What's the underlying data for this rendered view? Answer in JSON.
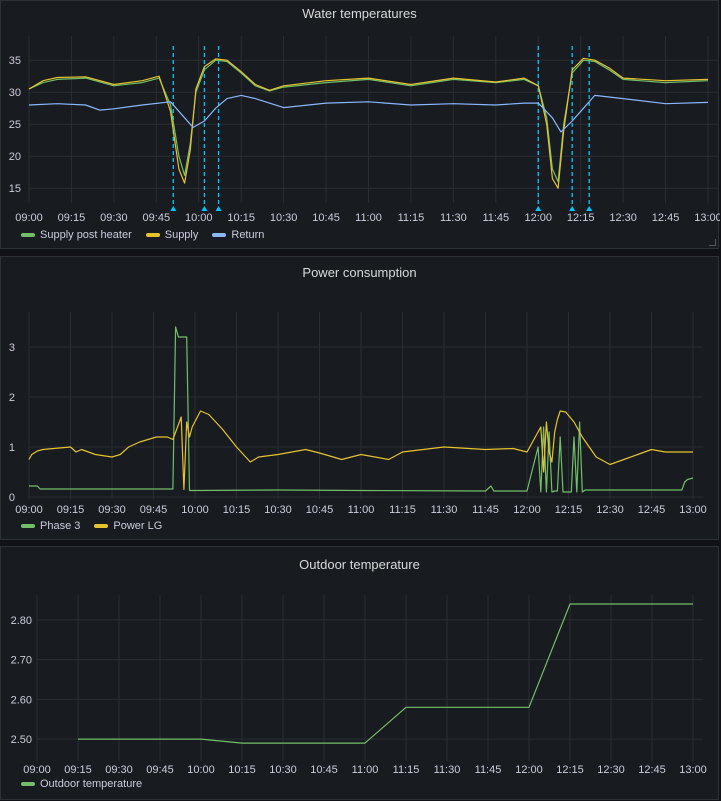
{
  "chart_data": [
    {
      "type": "line",
      "title": "Water temperatures",
      "xlabel": "",
      "ylabel": "",
      "x_ticks": [
        "09:00",
        "09:15",
        "09:30",
        "09:45",
        "10:00",
        "10:15",
        "10:30",
        "10:45",
        "11:00",
        "11:15",
        "11:30",
        "11:45",
        "12:00",
        "12:15",
        "12:30",
        "12:45",
        "13:00"
      ],
      "xlim": [
        "09:00",
        "13:00"
      ],
      "ylim": [
        13,
        38
      ],
      "y_ticks": [
        15,
        20,
        25,
        30,
        35
      ],
      "annotations_x": [
        "09:51",
        "10:02",
        "10:07",
        "12:00",
        "12:12",
        "12:18"
      ],
      "annotation_color": "#00c8ff",
      "grid": true,
      "legend": "bottom-left",
      "series": [
        {
          "name": "Supply post heater",
          "color": "#73bf69",
          "x": [
            "09:00",
            "09:05",
            "09:10",
            "09:20",
            "09:30",
            "09:40",
            "09:46",
            "09:50",
            "09:53",
            "09:55",
            "09:57",
            "09:59",
            "10:02",
            "10:06",
            "10:10",
            "10:15",
            "10:20",
            "10:25",
            "10:30",
            "10:45",
            "11:00",
            "11:15",
            "11:30",
            "11:45",
            "11:55",
            "12:00",
            "12:03",
            "12:05",
            "12:07",
            "12:09",
            "12:12",
            "12:16",
            "12:20",
            "12:25",
            "12:30",
            "12:45",
            "13:00"
          ],
          "y": [
            30.5,
            31.5,
            32,
            32.2,
            31,
            31.5,
            32.2,
            28,
            20,
            17,
            22,
            30,
            33.5,
            35,
            34.8,
            33,
            31,
            30.2,
            30.8,
            31.5,
            32,
            31,
            32,
            31.5,
            32,
            31,
            26,
            18,
            16,
            25,
            33,
            35,
            34.8,
            33.5,
            32,
            31.5,
            31.8
          ]
        },
        {
          "name": "Supply",
          "color": "#e6c32e",
          "x": [
            "09:00",
            "09:05",
            "09:10",
            "09:20",
            "09:30",
            "09:40",
            "09:46",
            "09:50",
            "09:53",
            "09:55",
            "09:57",
            "09:59",
            "10:02",
            "10:06",
            "10:10",
            "10:15",
            "10:20",
            "10:25",
            "10:30",
            "10:45",
            "11:00",
            "11:15",
            "11:30",
            "11:45",
            "11:55",
            "12:00",
            "12:03",
            "12:05",
            "12:07",
            "12:09",
            "12:12",
            "12:16",
            "12:20",
            "12:25",
            "12:30",
            "12:45",
            "13:00"
          ],
          "y": [
            30.5,
            31.8,
            32.3,
            32.4,
            31.2,
            31.8,
            32.5,
            27,
            18,
            15.8,
            21,
            30.5,
            34,
            35.2,
            35,
            33.2,
            31.2,
            30.3,
            31,
            31.8,
            32.2,
            31.2,
            32.2,
            31.6,
            32.2,
            31,
            25,
            16.5,
            15,
            24,
            33.5,
            35.3,
            35,
            33.8,
            32.2,
            31.8,
            32
          ]
        },
        {
          "name": "Return",
          "color": "#8ab8ff",
          "x": [
            "09:00",
            "09:10",
            "09:20",
            "09:25",
            "09:30",
            "09:40",
            "09:50",
            "09:55",
            "09:58",
            "10:02",
            "10:06",
            "10:10",
            "10:15",
            "10:20",
            "10:30",
            "10:45",
            "11:00",
            "11:15",
            "11:30",
            "11:45",
            "11:55",
            "12:00",
            "12:05",
            "12:08",
            "12:12",
            "12:16",
            "12:20",
            "12:30",
            "12:45",
            "13:00"
          ],
          "y": [
            28,
            28.2,
            28,
            27.2,
            27.4,
            28,
            28.5,
            26,
            24.5,
            25.5,
            27.5,
            29,
            29.5,
            29,
            27.6,
            28.3,
            28.5,
            28,
            28.2,
            28,
            28.3,
            28.3,
            26,
            23.8,
            25.5,
            27.5,
            29.5,
            29,
            28.2,
            28.4
          ]
        }
      ]
    },
    {
      "type": "line",
      "title": "Power consumption",
      "xlabel": "",
      "ylabel": "",
      "x_ticks": [
        "09:00",
        "09:15",
        "09:30",
        "09:45",
        "10:00",
        "10:15",
        "10:30",
        "10:45",
        "11:00",
        "11:15",
        "11:30",
        "11:45",
        "12:00",
        "12:15",
        "12:30",
        "12:45",
        "13:00"
      ],
      "xlim": [
        "09:00",
        "13:00"
      ],
      "ylim": [
        0,
        3.6
      ],
      "y_ticks": [
        0,
        1,
        2,
        3
      ],
      "grid": true,
      "legend": "bottom-left",
      "series": [
        {
          "name": "Phase 3",
          "color": "#73bf69",
          "x": [
            "09:00",
            "09:03",
            "09:04",
            "09:52",
            "09:53",
            "09:54",
            "09:57",
            "09:58",
            "10:00",
            "10:30",
            "11:00",
            "11:45",
            "11:47",
            "11:48",
            "12:00",
            "12:04",
            "12:05",
            "12:06",
            "12:07",
            "12:08",
            "12:09",
            "12:10",
            "12:11",
            "12:12",
            "12:13",
            "12:16",
            "12:17",
            "12:18",
            "12:19",
            "12:20",
            "12:21",
            "12:56",
            "12:57",
            "12:58",
            "13:00"
          ],
          "y": [
            0.22,
            0.22,
            0.16,
            0.16,
            3.4,
            3.2,
            3.2,
            0.13,
            0.13,
            0.14,
            0.13,
            0.12,
            0.22,
            0.12,
            0.12,
            1.0,
            0.1,
            1.4,
            0.1,
            1.3,
            0.1,
            0.12,
            0.12,
            1.2,
            0.1,
            0.1,
            1.2,
            0.1,
            1.5,
            0.1,
            0.14,
            0.14,
            0.3,
            0.35,
            0.38
          ]
        },
        {
          "name": "Power LG",
          "color": "#e6c32e",
          "x": [
            "09:00",
            "09:01",
            "09:03",
            "09:05",
            "09:15",
            "09:17",
            "09:19",
            "09:24",
            "09:30",
            "09:33",
            "09:36",
            "09:40",
            "09:43",
            "09:46",
            "09:50",
            "09:52",
            "09:55",
            "09:56",
            "09:57",
            "09:58",
            "09:59",
            "10:02",
            "10:05",
            "10:10",
            "10:15",
            "10:20",
            "10:23",
            "10:30",
            "10:40",
            "10:45",
            "10:50",
            "10:53",
            "11:00",
            "11:10",
            "11:15",
            "11:30",
            "11:45",
            "11:55",
            "12:00",
            "12:05",
            "12:06",
            "12:07",
            "12:08",
            "12:09",
            "12:10",
            "12:11",
            "12:12",
            "12:14",
            "12:17",
            "12:20",
            "12:25",
            "12:30",
            "12:35",
            "12:40",
            "12:45",
            "12:50",
            "13:00"
          ],
          "y": [
            0.75,
            0.85,
            0.92,
            0.95,
            1.0,
            0.9,
            0.95,
            0.85,
            0.8,
            0.85,
            1.0,
            1.1,
            1.15,
            1.2,
            1.2,
            1.15,
            1.6,
            0.15,
            1.5,
            1.2,
            1.4,
            1.72,
            1.65,
            1.35,
            1.0,
            0.7,
            0.8,
            0.85,
            0.95,
            0.88,
            0.8,
            0.75,
            0.85,
            0.75,
            0.9,
            1.0,
            0.95,
            0.97,
            0.9,
            1.4,
            0.5,
            1.5,
            0.9,
            0.7,
            1.3,
            1.55,
            1.72,
            1.7,
            1.5,
            1.2,
            0.8,
            0.65,
            0.75,
            0.85,
            0.95,
            0.9,
            0.9
          ]
        }
      ]
    },
    {
      "type": "line",
      "title": "Outdoor temperature",
      "xlabel": "",
      "ylabel": "",
      "x_ticks": [
        "09:00",
        "09:15",
        "09:30",
        "09:45",
        "10:00",
        "10:15",
        "10:30",
        "10:45",
        "11:00",
        "11:15",
        "11:30",
        "11:45",
        "12:00",
        "12:15",
        "12:30",
        "12:45",
        "13:00"
      ],
      "xlim": [
        "09:00",
        "13:00"
      ],
      "ylim": [
        2.45,
        2.85
      ],
      "y_ticks": [
        "2.50",
        "2.60",
        "2.70",
        "2.80"
      ],
      "grid": true,
      "legend": "bottom-left",
      "series": [
        {
          "name": "Outdoor temperature",
          "color": "#73bf69",
          "x": [
            "09:15",
            "10:00",
            "10:15",
            "11:00",
            "11:15",
            "12:00",
            "12:15",
            "13:00"
          ],
          "y": [
            2.5,
            2.5,
            2.49,
            2.49,
            2.58,
            2.58,
            2.84,
            2.84
          ]
        }
      ]
    }
  ]
}
